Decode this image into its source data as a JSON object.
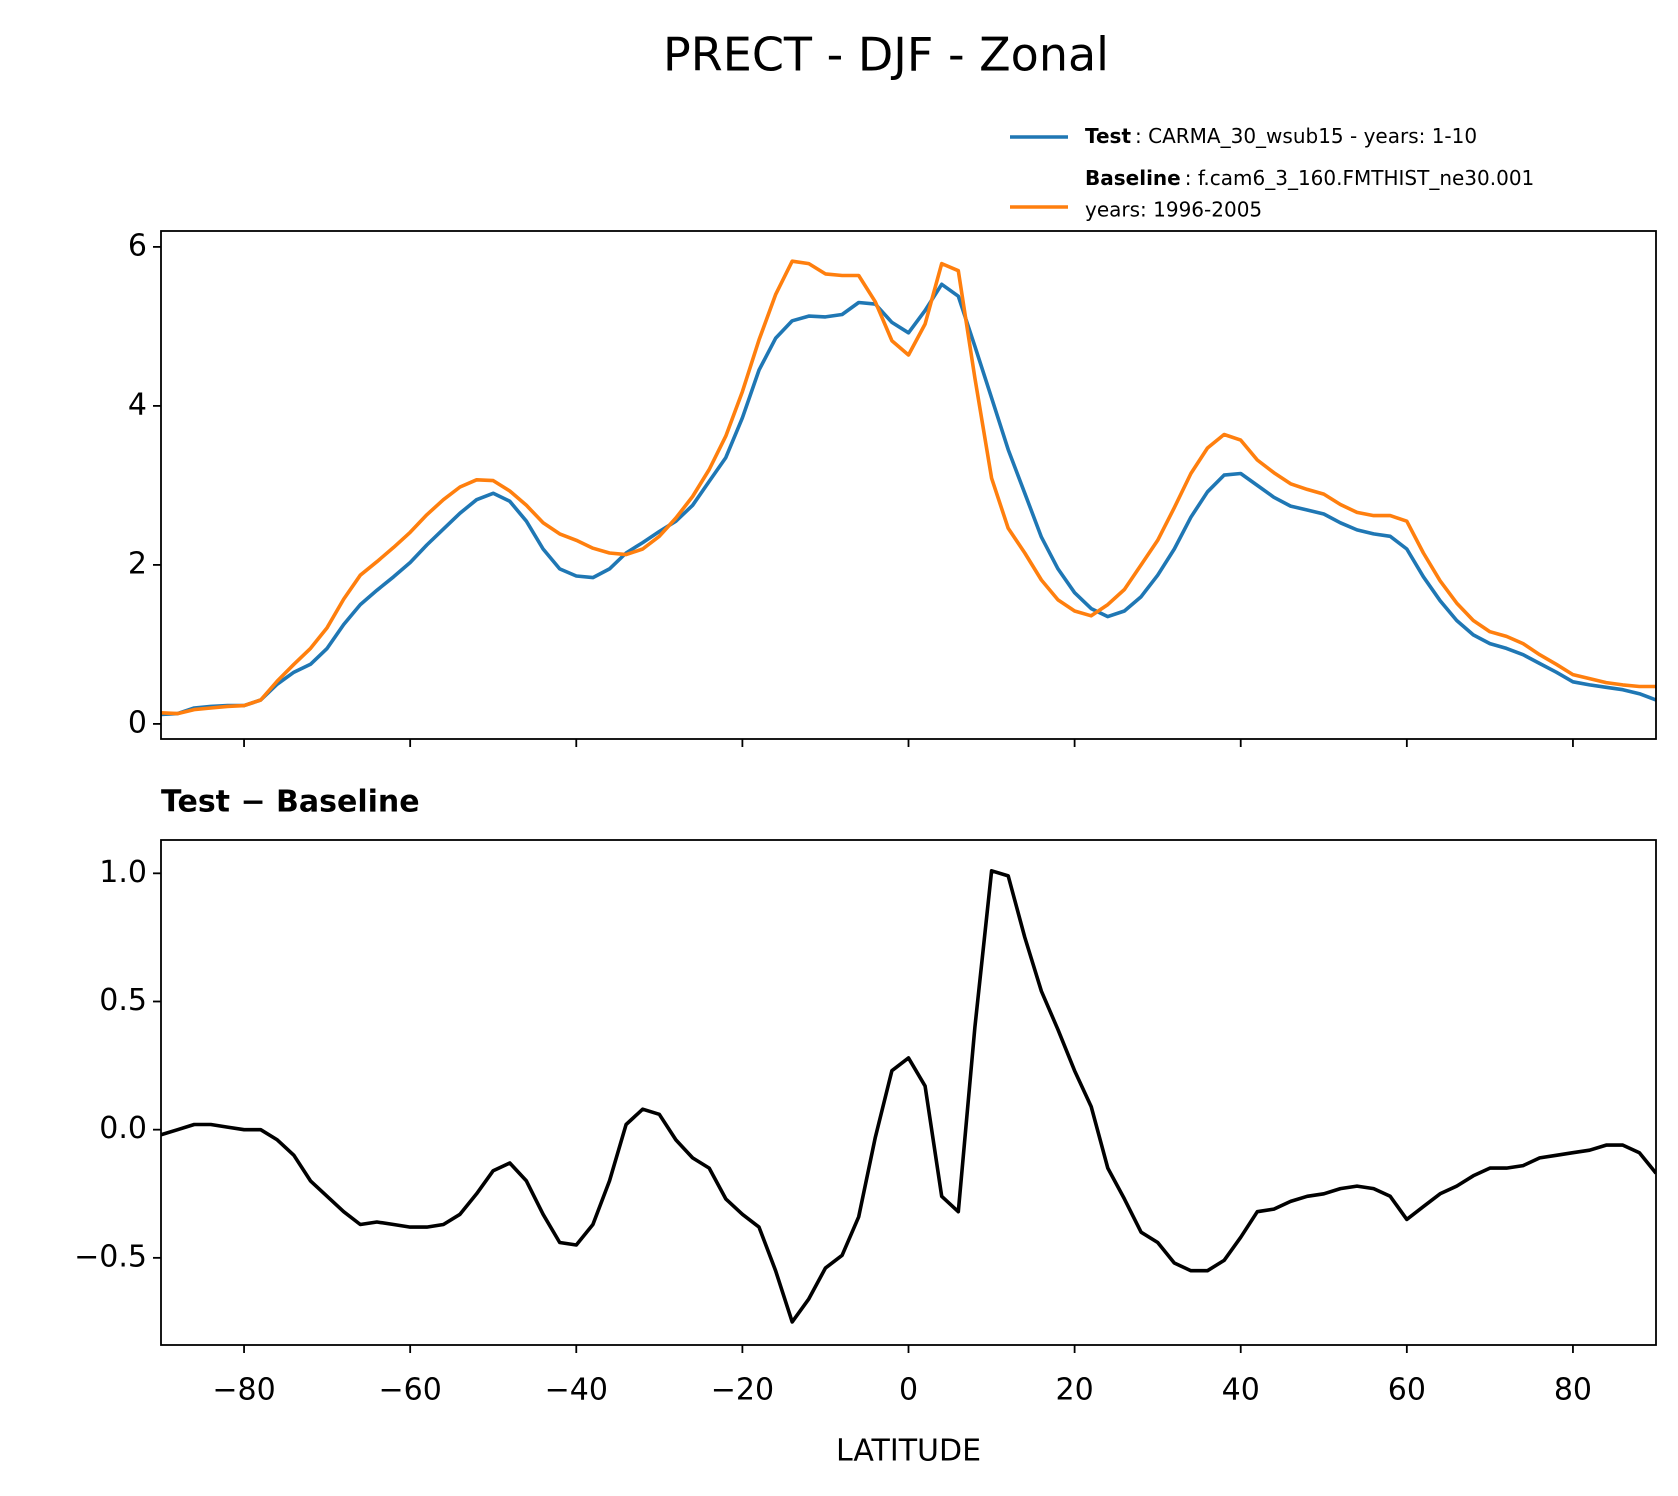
{
  "chart_data": [
    {
      "type": "line",
      "title": "PRECT - DJF - Zonal",
      "x": [
        -90,
        -88,
        -86,
        -84,
        -82,
        -80,
        -78,
        -76,
        -74,
        -72,
        -70,
        -68,
        -66,
        -64,
        -62,
        -60,
        -58,
        -56,
        -54,
        -52,
        -50,
        -48,
        -46,
        -44,
        -42,
        -40,
        -38,
        -36,
        -34,
        -32,
        -30,
        -28,
        -26,
        -24,
        -22,
        -20,
        -18,
        -16,
        -14,
        -12,
        -10,
        -8,
        -6,
        -4,
        -2,
        0,
        2,
        4,
        6,
        8,
        10,
        12,
        14,
        16,
        18,
        20,
        22,
        24,
        26,
        28,
        30,
        32,
        34,
        36,
        38,
        40,
        42,
        44,
        46,
        48,
        50,
        52,
        54,
        56,
        58,
        60,
        62,
        64,
        66,
        68,
        70,
        72,
        74,
        76,
        78,
        80,
        82,
        84,
        86,
        88,
        90
      ],
      "series": [
        {
          "name": "Test",
          "description": [
            ": CARMA_30_wsub15 - years: 1-10"
          ],
          "color": "#1f77b4",
          "values": [
            0.12,
            0.13,
            0.2,
            0.22,
            0.23,
            0.23,
            0.3,
            0.5,
            0.65,
            0.75,
            0.95,
            1.25,
            1.5,
            1.68,
            1.85,
            2.03,
            2.25,
            2.45,
            2.65,
            2.82,
            2.9,
            2.8,
            2.55,
            2.2,
            1.95,
            1.86,
            1.84,
            1.95,
            2.15,
            2.28,
            2.42,
            2.55,
            2.75,
            3.05,
            3.35,
            3.85,
            4.45,
            4.85,
            5.07,
            5.13,
            5.12,
            5.15,
            5.3,
            5.28,
            5.05,
            4.92,
            5.2,
            5.53,
            5.38,
            4.75,
            4.1,
            3.45,
            2.9,
            2.35,
            1.95,
            1.65,
            1.45,
            1.35,
            1.42,
            1.6,
            1.87,
            2.2,
            2.6,
            2.92,
            3.13,
            3.15,
            3.0,
            2.85,
            2.74,
            2.69,
            2.64,
            2.53,
            2.44,
            2.39,
            2.36,
            2.2,
            1.85,
            1.55,
            1.3,
            1.12,
            1.01,
            0.95,
            0.87,
            0.76,
            0.65,
            0.53,
            0.49,
            0.46,
            0.43,
            0.38,
            0.3
          ]
        },
        {
          "name": "Baseline",
          "description": [
            ": f.cam6_3_160.FMTHIST_ne30.001",
            "years: 1996-2005"
          ],
          "color": "#ff7f0e",
          "values": [
            0.14,
            0.13,
            0.18,
            0.2,
            0.22,
            0.23,
            0.3,
            0.54,
            0.75,
            0.95,
            1.21,
            1.57,
            1.87,
            2.04,
            2.22,
            2.41,
            2.63,
            2.82,
            2.98,
            3.07,
            3.06,
            2.93,
            2.75,
            2.53,
            2.39,
            2.31,
            2.21,
            2.15,
            2.13,
            2.2,
            2.36,
            2.59,
            2.86,
            3.2,
            3.62,
            4.18,
            4.83,
            5.4,
            5.82,
            5.79,
            5.66,
            5.64,
            5.64,
            5.31,
            4.82,
            4.64,
            5.03,
            5.79,
            5.7,
            4.35,
            3.09,
            2.46,
            2.15,
            1.81,
            1.56,
            1.42,
            1.36,
            1.5,
            1.69,
            2.0,
            2.31,
            2.72,
            3.15,
            3.47,
            3.64,
            3.57,
            3.32,
            3.16,
            3.02,
            2.95,
            2.89,
            2.76,
            2.66,
            2.62,
            2.62,
            2.55,
            2.15,
            1.8,
            1.52,
            1.3,
            1.16,
            1.1,
            1.01,
            0.87,
            0.75,
            0.62,
            0.57,
            0.52,
            0.49,
            0.47,
            0.47
          ]
        }
      ],
      "xlim": [
        -90,
        90
      ],
      "xticks": [
        -80,
        -60,
        -40,
        -20,
        0,
        20,
        40,
        60,
        80
      ],
      "ylim": [
        -0.19,
        6.2
      ],
      "yticks": [
        0,
        2,
        4,
        6
      ]
    },
    {
      "type": "line",
      "title": "Test − Baseline",
      "xlabel": "LATITUDE",
      "color": "#000000",
      "x": [
        -90,
        -88,
        -86,
        -84,
        -82,
        -80,
        -78,
        -76,
        -74,
        -72,
        -70,
        -68,
        -66,
        -64,
        -62,
        -60,
        -58,
        -56,
        -54,
        -52,
        -50,
        -48,
        -46,
        -44,
        -42,
        -40,
        -38,
        -36,
        -34,
        -32,
        -30,
        -28,
        -26,
        -24,
        -22,
        -20,
        -18,
        -16,
        -14,
        -12,
        -10,
        -8,
        -6,
        -4,
        -2,
        0,
        2,
        4,
        6,
        8,
        10,
        12,
        14,
        16,
        18,
        20,
        22,
        24,
        26,
        28,
        30,
        32,
        34,
        36,
        38,
        40,
        42,
        44,
        46,
        48,
        50,
        52,
        54,
        56,
        58,
        60,
        62,
        64,
        66,
        68,
        70,
        72,
        74,
        76,
        78,
        80,
        82,
        84,
        86,
        88,
        90
      ],
      "values": [
        -0.02,
        0,
        0.02,
        0.02,
        0.01,
        0,
        0,
        -0.04,
        -0.1,
        -0.2,
        -0.26,
        -0.32,
        -0.37,
        -0.36,
        -0.37,
        -0.38,
        -0.38,
        -0.37,
        -0.33,
        -0.25,
        -0.16,
        -0.13,
        -0.2,
        -0.33,
        -0.44,
        -0.45,
        -0.37,
        -0.2,
        0.02,
        0.08,
        0.06,
        -0.04,
        -0.11,
        -0.15,
        -0.27,
        -0.33,
        -0.38,
        -0.55,
        -0.75,
        -0.66,
        -0.54,
        -0.49,
        -0.34,
        -0.03,
        0.23,
        0.28,
        0.17,
        -0.26,
        -0.32,
        0.4,
        1.01,
        0.99,
        0.75,
        0.54,
        0.39,
        0.23,
        0.09,
        -0.15,
        -0.27,
        -0.4,
        -0.44,
        -0.52,
        -0.55,
        -0.55,
        -0.51,
        -0.42,
        -0.32,
        -0.31,
        -0.28,
        -0.26,
        -0.25,
        -0.23,
        -0.22,
        -0.23,
        -0.26,
        -0.35,
        -0.3,
        -0.25,
        -0.22,
        -0.18,
        -0.15,
        -0.15,
        -0.14,
        -0.11,
        -0.1,
        -0.09,
        -0.08,
        -0.06,
        -0.06,
        -0.09,
        -0.17
      ],
      "xlim": [
        -90,
        90
      ],
      "xticks": [
        {
          "value": -80,
          "label": "−80"
        },
        {
          "value": -60,
          "label": "−60"
        },
        {
          "value": -40,
          "label": "−40"
        },
        {
          "value": -20,
          "label": "−20"
        },
        0,
        20,
        40,
        60,
        80
      ],
      "ylim": [
        -0.84,
        1.13
      ],
      "yticks": [
        {
          "value": -0.5,
          "label": "−0.5"
        },
        {
          "value": 0,
          "label": "0.0"
        },
        0.5,
        {
          "value": 1,
          "label": "1.0"
        }
      ]
    }
  ]
}
